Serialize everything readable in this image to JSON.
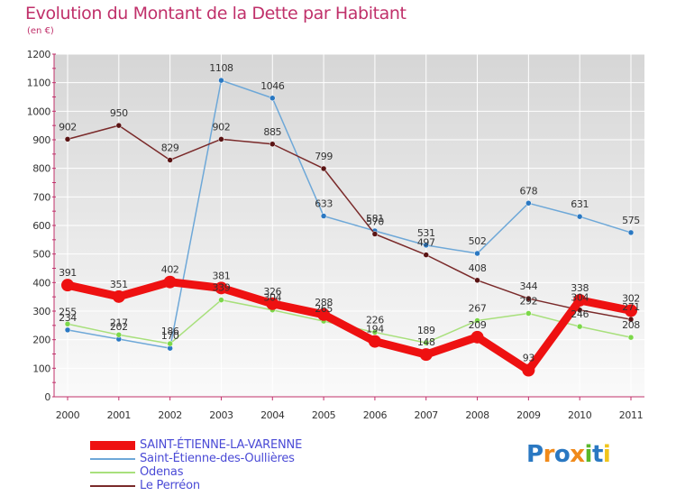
{
  "chart_data": {
    "type": "line",
    "title": "Evolution du Montant de la Dette par Habitant",
    "subtitle": "(en €)",
    "x": [
      "2000",
      "2001",
      "2002",
      "2003",
      "2004",
      "2005",
      "2006",
      "2007",
      "2008",
      "2009",
      "2010",
      "2011"
    ],
    "ylim": [
      0,
      1200
    ],
    "yticks": [
      0,
      100,
      200,
      300,
      400,
      500,
      600,
      700,
      800,
      900,
      1000,
      1100,
      1200
    ],
    "grid": true,
    "legend_position": "bottom-left",
    "series": [
      {
        "name": "SAINT-ÉTIENNE-LA-VARENNE",
        "color": "#ee1111",
        "marker": "#ee1111",
        "values": [
          391,
          351,
          402,
          381,
          326,
          288,
          194,
          148,
          209,
          93,
          338,
          302
        ]
      },
      {
        "name": "Saint-Étienne-des-Oullières",
        "color": "#6ea8d8",
        "marker": "#2a78c2",
        "values": [
          234,
          202,
          170,
          1108,
          1046,
          633,
          581,
          531,
          502,
          678,
          631,
          575
        ]
      },
      {
        "name": "Odenas",
        "color": "#a8e07c",
        "marker": "#7cd84a",
        "values": [
          255,
          217,
          186,
          339,
          304,
          265,
          226,
          189,
          267,
          292,
          246,
          208
        ]
      },
      {
        "name": "Le Perréon",
        "color": "#7a2a2a",
        "marker": "#5a1414",
        "values": [
          902,
          950,
          829,
          902,
          885,
          799,
          570,
          497,
          408,
          344,
          304,
          271
        ]
      }
    ]
  },
  "logo": {
    "letters": [
      "P",
      "r",
      "o",
      "x",
      "i",
      "t",
      "i"
    ],
    "colors": [
      "#2a78c2",
      "#f08a1a",
      "#2a78c2",
      "#f08a1a",
      "#5ab82a",
      "#2a78c2",
      "#f0c41a"
    ]
  }
}
